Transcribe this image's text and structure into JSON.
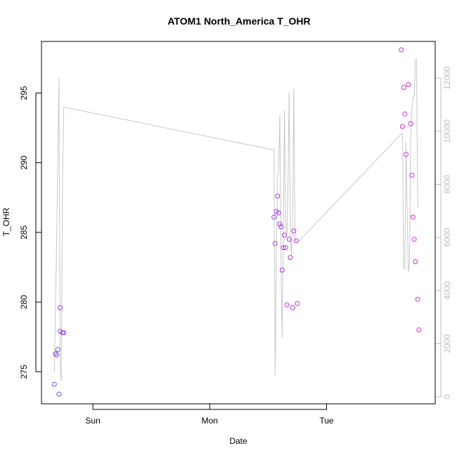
{
  "chart_data": {
    "type": "scatter",
    "title": "ATOM1 North_America T_OHR",
    "xlabel": "Date",
    "ylabel": "T_OHR",
    "x_ticks": [
      "Sun",
      "Mon",
      "Tue"
    ],
    "y_ticks": [
      275,
      280,
      285,
      290,
      295
    ],
    "y2_ticks": [
      0,
      2000,
      4000,
      6000,
      8000,
      10000,
      12000
    ],
    "xlim_days": [
      -0.44,
      2.93
    ],
    "ylim": [
      272.7,
      298.7
    ],
    "y2lim": [
      -265,
      13380
    ],
    "grid": false,
    "legend": "none",
    "colors": {
      "line": "#c8c8c8",
      "axis": "#000000",
      "right_axis": "#bebebe",
      "points_start": "#7a4bf0",
      "points_end": "#f020d2"
    },
    "series": [
      {
        "kind": "points",
        "axis": "left",
        "x_days": [
          -0.33,
          -0.32,
          -0.31,
          -0.3,
          -0.29,
          -0.28,
          -0.28,
          -0.26,
          -0.25,
          1.55,
          1.56,
          1.57,
          1.58,
          1.59,
          1.6,
          1.61,
          1.62,
          1.63,
          1.64,
          1.65,
          1.66,
          1.68,
          1.69,
          1.71,
          1.72,
          1.74,
          1.75,
          2.64,
          2.65,
          2.66,
          2.67,
          2.68,
          2.7,
          2.72,
          2.73,
          2.74,
          2.75,
          2.76,
          2.78,
          2.79
        ],
        "y": [
          274.1,
          276.3,
          276.2,
          276.6,
          273.4,
          277.9,
          279.6,
          277.8,
          277.8,
          286.1,
          284.2,
          286.5,
          287.6,
          286.4,
          285.6,
          285.4,
          282.3,
          283.9,
          284.8,
          283.9,
          279.8,
          284.5,
          283.2,
          279.6,
          285.1,
          284.4,
          279.9,
          298.1,
          292.6,
          295.4,
          293.5,
          290.6,
          295.6,
          292.8,
          289.1,
          286.1,
          284.5,
          282.9,
          280.2,
          278.0
        ]
      },
      {
        "kind": "line",
        "axis": "right",
        "x_days": [
          -0.33,
          -0.31,
          -0.29,
          -0.28,
          -0.27,
          -0.26,
          -0.25,
          -0.24,
          1.54,
          1.55,
          1.56,
          1.57,
          1.58,
          1.59,
          1.6,
          1.61,
          1.62,
          1.63,
          1.64,
          1.65,
          1.66,
          1.67,
          1.68,
          1.69,
          1.7,
          1.71,
          1.72,
          1.73,
          1.74,
          1.75,
          2.64,
          2.65,
          2.66,
          2.67,
          2.68,
          2.69,
          2.7,
          2.71,
          2.72,
          2.73,
          2.74,
          2.75,
          2.76,
          2.77,
          2.78
        ],
        "y": [
          900,
          6000,
          12000,
          1000,
          600,
          8000,
          10900,
          10900,
          9300,
          9300,
          800,
          5200,
          8300,
          8500,
          10600,
          5000,
          2200,
          6200,
          10800,
          6500,
          6000,
          8000,
          11500,
          6000,
          5300,
          7000,
          11600,
          6000,
          5800,
          5800,
          9900,
          9900,
          4900,
          4800,
          9600,
          7000,
          4700,
          5000,
          9800,
          10800,
          11300,
          11300,
          12700,
          12700,
          7100
        ]
      }
    ]
  }
}
